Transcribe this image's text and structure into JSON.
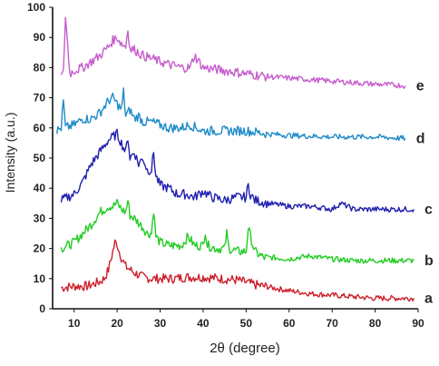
{
  "chart_data": {
    "type": "line",
    "title": "",
    "xlabel": "2θ (degree)",
    "ylabel": "Intensity (a.u.)",
    "xlim": [
      5,
      90
    ],
    "ylim": [
      0,
      100
    ],
    "xticks": [
      10,
      20,
      30,
      40,
      50,
      60,
      70,
      80,
      90
    ],
    "yticks": [
      0,
      10,
      20,
      30,
      40,
      50,
      60,
      70,
      80,
      90,
      100
    ],
    "grid": false,
    "legend": "curve labels at right end",
    "series": [
      {
        "name": "a",
        "color": "#cc1f2a",
        "x": [
          7,
          10,
          13,
          15,
          16,
          17,
          18,
          18.5,
          19,
          19.5,
          20,
          20.5,
          21,
          22,
          23,
          24,
          26,
          28,
          30,
          33,
          36,
          40,
          44,
          48,
          52,
          56,
          60,
          65,
          70,
          75,
          80,
          85,
          89
        ],
        "y": [
          7,
          7.5,
          7.5,
          8.5,
          9,
          10,
          13,
          16,
          19,
          22,
          21.5,
          19,
          17,
          14,
          13,
          12,
          10.5,
          10,
          10,
          10,
          10.5,
          10.5,
          10,
          9.5,
          8,
          7,
          6,
          5,
          4.5,
          4,
          3.5,
          3.5,
          3.5
        ]
      },
      {
        "name": "b",
        "color": "#22cc22",
        "x": [
          7,
          10,
          12,
          14,
          16,
          18,
          19,
          20,
          21,
          22,
          22.5,
          23,
          24,
          26,
          27,
          28,
          28.5,
          29,
          30,
          32,
          35,
          36.5,
          38,
          40,
          40.5,
          41,
          43,
          45,
          45.5,
          46,
          48,
          50,
          50.5,
          51,
          52,
          54,
          56,
          60,
          62,
          65,
          70,
          75,
          80,
          85,
          89
        ],
        "y": [
          20,
          22,
          25,
          28,
          32,
          34,
          34,
          35,
          33,
          32,
          36,
          31,
          30,
          27,
          25,
          25,
          33,
          24,
          22,
          21,
          21,
          24,
          21,
          21,
          26,
          21,
          20,
          20,
          25,
          20,
          19,
          19,
          27,
          24,
          19,
          17,
          17,
          16.5,
          17,
          17.5,
          16.5,
          16,
          16,
          16,
          16
        ]
      },
      {
        "name": "c",
        "color": "#1f1fb0",
        "x": [
          7,
          10,
          12,
          14,
          15,
          16,
          17,
          18,
          19,
          20,
          21,
          22,
          22.5,
          23,
          24,
          25,
          26,
          27,
          28,
          28.5,
          29,
          30,
          32,
          34,
          36,
          38,
          40,
          42,
          45,
          48,
          50,
          50.5,
          51,
          52,
          55,
          60,
          65,
          70,
          72,
          75,
          80,
          85,
          89
        ],
        "y": [
          36,
          38,
          42,
          48,
          50,
          52,
          54,
          56,
          57,
          58,
          55,
          52,
          57,
          50,
          52,
          48,
          50,
          46,
          46,
          52,
          44,
          41,
          40,
          38,
          38,
          37,
          39,
          37,
          36,
          37,
          37,
          41,
          38,
          36,
          35,
          34,
          34,
          33,
          35,
          33,
          33,
          33,
          33
        ]
      },
      {
        "name": "d",
        "color": "#1e8bc8",
        "x": [
          6,
          7,
          7.5,
          8,
          10,
          12,
          14,
          16,
          17,
          18,
          19,
          20,
          21,
          21.5,
          22,
          23,
          24,
          25,
          26,
          28,
          30,
          32,
          35,
          37,
          40,
          45,
          50,
          55,
          60,
          70,
          80,
          87
        ],
        "y": [
          59,
          60,
          69,
          60,
          61,
          63,
          63,
          65,
          67,
          69,
          70,
          68,
          66,
          72,
          64,
          66,
          63,
          64,
          62,
          62,
          61,
          60,
          60,
          61,
          59,
          59,
          59,
          58,
          57.5,
          57,
          57,
          56.5
        ]
      },
      {
        "name": "e",
        "color": "#c65ccc",
        "x": [
          7,
          7.5,
          8,
          9,
          10,
          12,
          14,
          16,
          18,
          19,
          20,
          21,
          22,
          22.5,
          23,
          24,
          25,
          26,
          28,
          30,
          32,
          35,
          37,
          38,
          40,
          45,
          50,
          55,
          60,
          65,
          70,
          75,
          80,
          87
        ],
        "y": [
          77,
          78,
          97,
          78,
          79,
          80,
          82,
          84,
          87,
          89,
          90,
          88,
          87,
          93,
          86,
          86,
          85,
          84,
          83,
          82,
          81,
          80,
          80,
          84,
          80,
          79,
          78,
          77,
          76.5,
          76,
          75.5,
          75,
          74.5,
          74
        ]
      }
    ]
  }
}
